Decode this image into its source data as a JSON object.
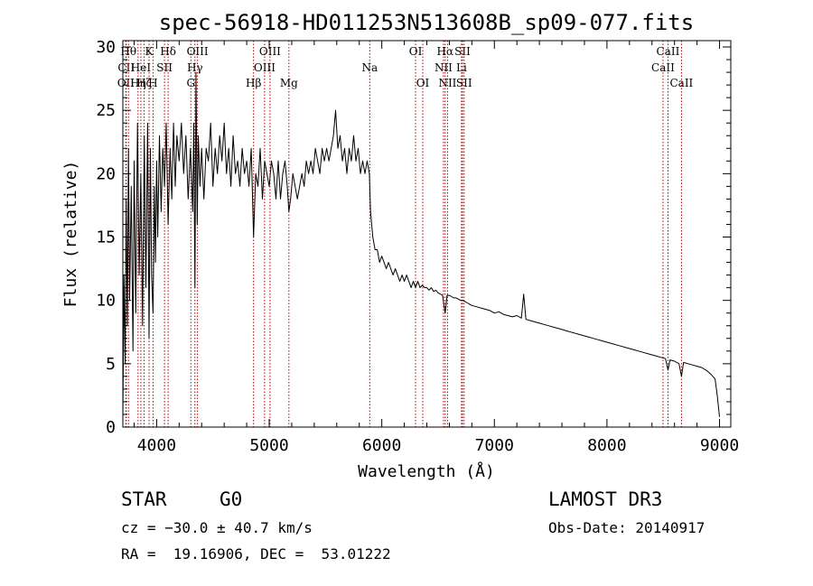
{
  "chart_data": {
    "type": "line",
    "title": "spec-56918-HD011253N513608B_sp09-077.fits",
    "xlabel": "Wavelength (Å)",
    "ylabel": "Flux (relative)",
    "xlim": [
      3700,
      9100
    ],
    "ylim": [
      0,
      30.5
    ],
    "xticks": [
      4000,
      5000,
      6000,
      7000,
      8000,
      9000
    ],
    "yticks": [
      0,
      5,
      10,
      15,
      20,
      25,
      30
    ],
    "series": [
      {
        "name": "flux",
        "x": [
          3700,
          3710,
          3720,
          3730,
          3740,
          3750,
          3760,
          3775,
          3790,
          3800,
          3815,
          3830,
          3845,
          3860,
          3875,
          3890,
          3905,
          3920,
          3933,
          3945,
          3955,
          3968,
          3980,
          3990,
          4000,
          4010,
          4025,
          4040,
          4055,
          4070,
          4085,
          4102,
          4120,
          4135,
          4150,
          4165,
          4180,
          4200,
          4220,
          4240,
          4260,
          4280,
          4300,
          4320,
          4330,
          4340,
          4350,
          4360,
          4370,
          4385,
          4400,
          4420,
          4440,
          4460,
          4480,
          4500,
          4520,
          4540,
          4560,
          4580,
          4600,
          4620,
          4640,
          4660,
          4680,
          4700,
          4720,
          4740,
          4760,
          4780,
          4800,
          4820,
          4840,
          4861,
          4880,
          4900,
          4920,
          4940,
          4960,
          4980,
          5000,
          5020,
          5040,
          5060,
          5080,
          5100,
          5120,
          5140,
          5160,
          5175,
          5190,
          5210,
          5230,
          5250,
          5270,
          5290,
          5310,
          5330,
          5350,
          5370,
          5390,
          5410,
          5430,
          5450,
          5470,
          5490,
          5510,
          5530,
          5550,
          5570,
          5590,
          5610,
          5630,
          5650,
          5670,
          5690,
          5710,
          5730,
          5750,
          5770,
          5790,
          5810,
          5830,
          5850,
          5870,
          5890,
          5900,
          5920,
          5940,
          5960,
          5980,
          6000,
          6020,
          6040,
          6060,
          6080,
          6100,
          6120,
          6140,
          6160,
          6180,
          6200,
          6220,
          6240,
          6260,
          6280,
          6300,
          6320,
          6340,
          6360,
          6380,
          6400,
          6420,
          6440,
          6460,
          6480,
          6500,
          6520,
          6540,
          6563,
          6580,
          6600,
          6620,
          6640,
          6660,
          6680,
          6700,
          6720,
          6740,
          6760,
          6780,
          6800,
          6840,
          6880,
          6920,
          6960,
          7000,
          7040,
          7080,
          7120,
          7160,
          7200,
          7240,
          7260,
          7280,
          7320,
          7360,
          7400,
          7440,
          7480,
          7520,
          7560,
          7600,
          7640,
          7680,
          7720,
          7760,
          7800,
          7840,
          7880,
          7920,
          7960,
          8000,
          8040,
          8080,
          8120,
          8160,
          8200,
          8240,
          8280,
          8320,
          8360,
          8400,
          8440,
          8480,
          8520,
          8542,
          8560,
          8600,
          8640,
          8662,
          8680,
          8720,
          8760,
          8800,
          8840,
          8880,
          8920,
          8960,
          8980,
          9000
        ],
        "y": [
          0.5,
          12,
          5,
          18,
          8,
          22,
          10,
          19,
          6,
          21,
          9,
          24,
          12,
          20,
          8,
          23,
          11,
          24,
          7,
          22,
          12,
          9,
          19,
          13,
          21,
          15,
          23,
          17,
          22,
          19,
          24,
          16,
          22,
          18,
          24,
          19,
          23,
          21,
          24,
          20,
          23,
          18,
          22,
          17,
          24,
          11,
          28,
          16,
          23,
          19,
          22,
          18,
          22,
          21,
          24,
          19,
          22,
          20,
          23,
          21,
          24,
          20,
          22,
          19,
          23,
          20,
          21,
          19,
          22,
          20,
          21,
          19,
          22,
          15,
          20,
          19,
          22,
          18,
          21,
          20,
          19,
          21,
          20,
          18,
          21,
          18,
          20,
          21,
          19,
          17,
          18,
          20,
          19,
          18,
          19,
          20,
          19,
          21,
          20,
          21,
          20,
          22,
          21,
          20,
          22,
          21,
          22,
          21,
          22,
          23,
          25,
          22,
          23,
          21,
          22,
          20,
          22,
          21,
          23,
          21,
          22,
          20,
          21,
          20,
          21,
          20,
          17,
          15,
          14,
          14,
          13,
          13.5,
          13,
          12.5,
          13,
          12.5,
          12,
          12.5,
          12,
          11.5,
          12,
          11.5,
          12,
          11.5,
          11,
          11.5,
          11,
          11.5,
          11,
          11.2,
          11,
          11,
          10.8,
          11,
          10.7,
          10.8,
          10.6,
          10.5,
          10.4,
          9,
          10.4,
          10.4,
          10.3,
          10.2,
          10.2,
          10.1,
          10,
          10,
          9.9,
          9.8,
          9.7,
          9.6,
          9.5,
          9.4,
          9.3,
          9.2,
          9,
          9.1,
          8.9,
          8.8,
          8.7,
          8.8,
          8.6,
          10.5,
          8.5,
          8.4,
          8.3,
          8.2,
          8.1,
          8,
          7.9,
          7.8,
          7.7,
          7.6,
          7.5,
          7.4,
          7.3,
          7.2,
          7.1,
          7,
          6.9,
          6.8,
          6.7,
          6.6,
          6.5,
          6.4,
          6.3,
          6.2,
          6.1,
          6,
          5.9,
          5.8,
          5.7,
          5.6,
          5.5,
          5.4,
          4.5,
          5.3,
          5.2,
          5,
          4,
          5.1,
          5,
          4.9,
          4.8,
          4.7,
          4.5,
          4.2,
          3.8,
          2.5,
          0.8
        ]
      }
    ],
    "lines": [
      {
        "wl": 3727,
        "label": "OII",
        "row": 2
      },
      {
        "wl": 3730,
        "label": "CII",
        "row": 1
      },
      {
        "wl": 3750,
        "label": "Hθ",
        "row": 0
      },
      {
        "wl": 3835,
        "label": "Hη",
        "row": 2
      },
      {
        "wl": 3860,
        "label": "HeI",
        "row": 1
      },
      {
        "wl": 3889,
        "label": "Hζ",
        "row": 2
      },
      {
        "wl": 3933,
        "label": "K",
        "row": 0
      },
      {
        "wl": 3968,
        "label": "H",
        "row": 2
      },
      {
        "wl": 4070,
        "label": "SII",
        "row": 1
      },
      {
        "wl": 4102,
        "label": "Hδ",
        "row": 0
      },
      {
        "wl": 4304,
        "label": "G",
        "row": 2
      },
      {
        "wl": 4340,
        "label": "Hγ",
        "row": 1
      },
      {
        "wl": 4363,
        "label": "OIII",
        "row": 0
      },
      {
        "wl": 4861,
        "label": "Hβ",
        "row": 2
      },
      {
        "wl": 4959,
        "label": "OIII",
        "row": 1
      },
      {
        "wl": 5007,
        "label": "OIII",
        "row": 0
      },
      {
        "wl": 5175,
        "label": "Mg",
        "row": 2
      },
      {
        "wl": 5893,
        "label": "Na",
        "row": 1
      },
      {
        "wl": 6300,
        "label": "OI",
        "row": 0
      },
      {
        "wl": 6364,
        "label": "OI",
        "row": 2
      },
      {
        "wl": 6548,
        "label": "NII",
        "row": 1
      },
      {
        "wl": 6563,
        "label": "Hα",
        "row": 0
      },
      {
        "wl": 6584,
        "label": "NII",
        "row": 2
      },
      {
        "wl": 6708,
        "label": "Li",
        "row": 1
      },
      {
        "wl": 6717,
        "label": "SII",
        "row": 0
      },
      {
        "wl": 6731,
        "label": "SII",
        "row": 2
      },
      {
        "wl": 8498,
        "label": "CaII",
        "row": 1
      },
      {
        "wl": 8542,
        "label": "CaII",
        "row": 0
      },
      {
        "wl": 8662,
        "label": "CaII",
        "row": 2
      }
    ]
  },
  "info": {
    "obj_class": "STAR",
    "subclass": "G0",
    "survey": "LAMOST DR3",
    "cz": "cz = −30.0 ± 40.7 km/s",
    "obs_date": "Obs-Date: 20140917",
    "radec": "RA =  19.16906, DEC =  53.01222"
  }
}
